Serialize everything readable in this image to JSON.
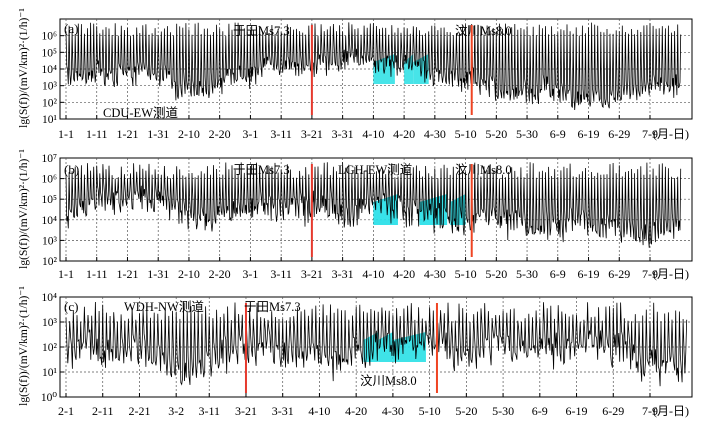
{
  "figure": {
    "ylabel": "lg(S(f))/(mV/km)²·(1/h)⁻¹"
  },
  "chart_data": [
    {
      "type": "line",
      "panel_label": "(a)",
      "station_label": "CDU-EW测道",
      "ylabel": "lg(S(f))/(mV/km)²·(1/h)⁻¹",
      "yscale": "log",
      "ylim": [
        1,
        1000000
      ],
      "yticks": [
        "10¹",
        "10²",
        "10³",
        "10⁴",
        "10⁵",
        "10⁶"
      ],
      "x_start": "1-1",
      "x_unit_label": "(月-日)",
      "xticks": [
        "1-1",
        "1-11",
        "1-21",
        "1-31",
        "2-10",
        "2-20",
        "3-1",
        "3-11",
        "3-21",
        "3-31",
        "4-10",
        "4-20",
        "4-30",
        "5-10",
        "5-20",
        "5-30",
        "6-9",
        "6-19",
        "6-29",
        "7-9"
      ],
      "grid": true,
      "events": [
        {
          "label": "于田Ms7.3",
          "name": "于田",
          "mag": "7.3",
          "date": "3-21"
        },
        {
          "label": "汶川Ms8.0",
          "name": "汶川",
          "mag": "8.0",
          "date": "5-12"
        }
      ],
      "anomalies": [
        {
          "start": "4-10",
          "end": "4-17"
        },
        {
          "start": "4-20",
          "end": "4-23"
        },
        {
          "start": "4-23",
          "end": "4-28"
        }
      ]
    },
    {
      "type": "line",
      "panel_label": "(b)",
      "station_label": "LGH-EW测道",
      "ylabel": "lg(S(f))/(mV/km)²·(1/h)⁻¹",
      "yscale": "log",
      "ylim": [
        100,
        10000000
      ],
      "yticks": [
        "10²",
        "10³",
        "10⁴",
        "10⁵",
        "10⁶",
        "10⁷"
      ],
      "x_start": "1-1",
      "x_unit_label": "(月-日)",
      "xticks": [
        "1-1",
        "1-11",
        "1-21",
        "1-31",
        "2-10",
        "2-20",
        "3-1",
        "3-11",
        "3-21",
        "3-31",
        "4-10",
        "4-20",
        "4-30",
        "5-10",
        "5-20",
        "5-30",
        "6-9",
        "6-19",
        "6-29",
        "7-9"
      ],
      "grid": true,
      "events": [
        {
          "label": "于田Ms7.3",
          "name": "于田",
          "mag": "7.3",
          "date": "3-21"
        },
        {
          "label": "汶川Ms8.0",
          "name": "汶川",
          "mag": "8.0",
          "date": "5-12"
        }
      ],
      "anomalies": [
        {
          "start": "4-10",
          "end": "4-18"
        },
        {
          "start": "4-25",
          "end": "5-4"
        },
        {
          "start": "5-5",
          "end": "5-10"
        }
      ]
    },
    {
      "type": "line",
      "panel_label": "(c)",
      "station_label": "WDH-NW测道",
      "ylabel": "lg(S(f))/(mV/km)²·(1/h)⁻¹",
      "yscale": "log",
      "ylim": [
        1,
        10000
      ],
      "yticks": [
        "10⁰",
        "10¹",
        "10²",
        "10³",
        "10⁴"
      ],
      "x_start": "2-1",
      "x_unit_label": "(月-日)",
      "xticks": [
        "2-1",
        "2-11",
        "2-21",
        "3-2",
        "3-11",
        "3-21",
        "3-31",
        "4-10",
        "4-20",
        "4-30",
        "5-10",
        "5-20",
        "5-30",
        "6-9",
        "6-19",
        "6-29",
        "7-9"
      ],
      "grid": true,
      "events": [
        {
          "label": "于田Ms7.3",
          "name": "于田",
          "mag": "7.3",
          "date": "3-21"
        },
        {
          "label": "汶川Ms8.0",
          "name": "汶川",
          "mag": "8.0",
          "date": "5-12"
        }
      ],
      "anomalies": [
        {
          "start": "4-22",
          "end": "4-26"
        },
        {
          "start": "4-26",
          "end": "4-30"
        },
        {
          "start": "4-30",
          "end": "5-9"
        }
      ]
    }
  ]
}
